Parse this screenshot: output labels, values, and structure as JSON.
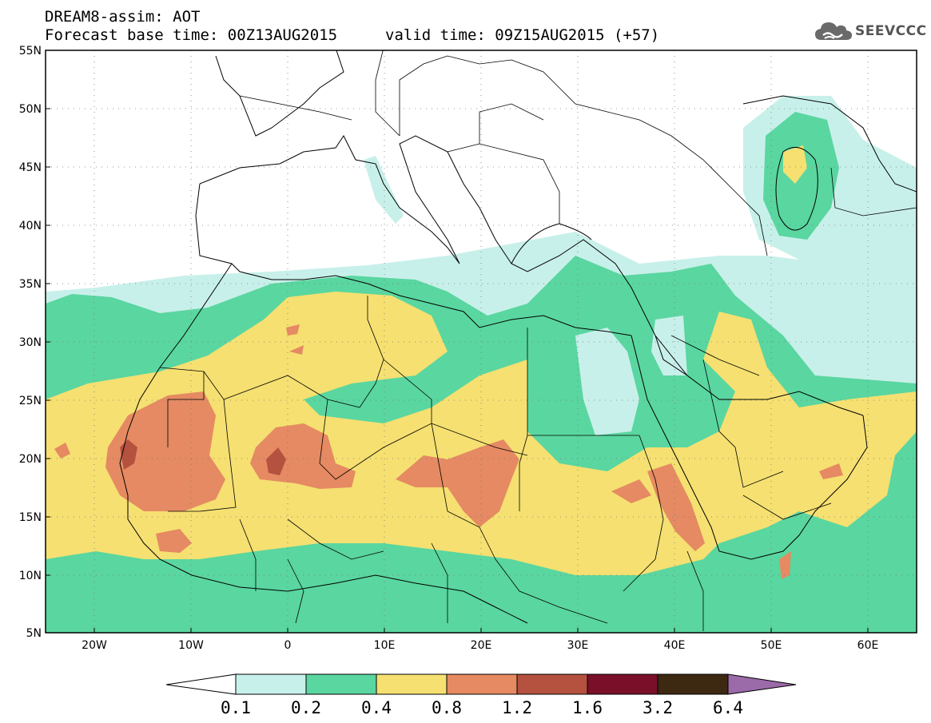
{
  "title": {
    "line1": "DREAM8-assim: AOT",
    "line2": "Forecast base time: 00Z13AUG2015",
    "line2_valid": "valid time: 09Z15AUG2015 (+57)"
  },
  "logo": {
    "text": "SEEVCCC",
    "icon": "cloud-logo-icon"
  },
  "axes": {
    "lat_labels": [
      "55N",
      "50N",
      "45N",
      "40N",
      "35N",
      "30N",
      "25N",
      "20N",
      "15N",
      "10N",
      "5N"
    ],
    "lon_labels": [
      "20W",
      "10W",
      "0",
      "10E",
      "20E",
      "30E",
      "40E",
      "50E",
      "60E"
    ],
    "lat_range": [
      5,
      55
    ],
    "lon_range": [
      -25,
      65
    ]
  },
  "colorbar": {
    "labels": [
      "0.1",
      "0.2",
      "0.4",
      "0.8",
      "1.2",
      "1.6",
      "3.2",
      "6.4"
    ],
    "colors": [
      "#c8f0ea",
      "#5ad6a0",
      "#f5e071",
      "#e58a62",
      "#b5513f",
      "#7a0f2a",
      "#3d2812",
      "#9b6aa8"
    ]
  },
  "palette": {
    "c01": "#c8f0ea",
    "c02": "#5ad6a0",
    "c04": "#f5e071",
    "c08": "#e58a62",
    "c12": "#b5513f"
  }
}
